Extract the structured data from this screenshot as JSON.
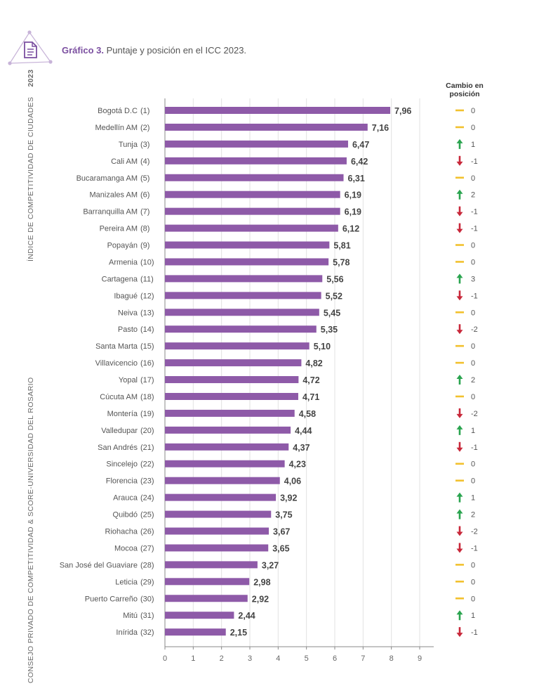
{
  "header": {
    "title_lead": "Gráfico 3.",
    "title_rest": " Puntaje y posición en el ICC 2023.",
    "side_label": "ÍNDICE DE COMPETITIVIDAD DE CIUDADES",
    "side_year": "2023",
    "side_label_bottom": "CONSEJO PRIVADO DE COMPETITIVIDAD & SCORE-UNIVERSIDAD DEL ROSARIO"
  },
  "change_column": {
    "title_line1": "Cambio en",
    "title_line2": "posición"
  },
  "colors": {
    "bar": "#8e5aa8",
    "accent": "#7b4fa0",
    "up": "#2aa44f",
    "down": "#c8283a",
    "same": "#f2c12e"
  },
  "chart_data": {
    "type": "bar",
    "orientation": "horizontal",
    "categories": [
      "Bogotá D.C",
      "Medellín AM",
      "Tunja",
      "Cali AM",
      "Bucaramanga AM",
      "Manizales AM",
      "Barranquilla AM",
      "Pereira AM",
      "Popayán",
      "Armenia",
      "Cartagena",
      "Ibagué",
      "Neiva",
      "Pasto",
      "Santa Marta",
      "Villavicencio",
      "Yopal",
      "Cúcuta AM",
      "Montería",
      "Valledupar",
      "San Andrés",
      "Sincelejo",
      "Florencia",
      "Arauca",
      "Quibdó",
      "Riohacha",
      "Mocoa",
      "San José del Guaviare",
      "Leticia",
      "Puerto Carreño",
      "Mitú",
      "Inírida"
    ],
    "ranks": [
      "(1)",
      "(2)",
      "(3)",
      "(4)",
      "(5)",
      "(6)",
      "(7)",
      "(8)",
      "(9)",
      "(10)",
      "(11)",
      "(12)",
      "(13)",
      "(14)",
      "(15)",
      "(16)",
      "(17)",
      "(18)",
      "(19)",
      "(20)",
      "(21)",
      "(22)",
      "(23)",
      "(24)",
      "(25)",
      "(26)",
      "(27)",
      "(28)",
      "(29)",
      "(30)",
      "(31)",
      "(32)"
    ],
    "values": [
      7.96,
      7.16,
      6.47,
      6.42,
      6.31,
      6.19,
      6.19,
      6.12,
      5.81,
      5.78,
      5.56,
      5.52,
      5.45,
      5.35,
      5.1,
      4.82,
      4.72,
      4.71,
      4.58,
      4.44,
      4.37,
      4.23,
      4.06,
      3.92,
      3.75,
      3.67,
      3.65,
      3.27,
      2.98,
      2.92,
      2.44,
      2.15
    ],
    "value_labels": [
      "7,96",
      "7,16",
      "6,47",
      "6,42",
      "6,31",
      "6,19",
      "6,19",
      "6,12",
      "5,81",
      "5,78",
      "5,56",
      "5,52",
      "5,45",
      "5,35",
      "5,10",
      "4,82",
      "4,72",
      "4,71",
      "4,58",
      "4,44",
      "4,37",
      "4,23",
      "4,06",
      "3,92",
      "3,75",
      "3,67",
      "3,65",
      "3,27",
      "2,98",
      "2,92",
      "2,44",
      "2,15"
    ],
    "position_change": [
      "0",
      "0",
      "1",
      "-1",
      "0",
      "2",
      "-1",
      "-1",
      "0",
      "0",
      "3",
      "-1",
      "0",
      "-2",
      "0",
      "0",
      "2",
      "0",
      "-2",
      "1",
      "-1",
      "0",
      "0",
      "1",
      "2",
      "-2",
      "-1",
      "0",
      "0",
      "0",
      "1",
      "-1"
    ],
    "change_direction": [
      "same",
      "same",
      "up",
      "down",
      "same",
      "up",
      "down",
      "down",
      "same",
      "same",
      "up",
      "down",
      "same",
      "down",
      "same",
      "same",
      "up",
      "same",
      "down",
      "up",
      "down",
      "same",
      "same",
      "up",
      "up",
      "down",
      "down",
      "same",
      "same",
      "same",
      "up",
      "down"
    ],
    "xlim": [
      0,
      9
    ],
    "xticks": [
      "0",
      "1",
      "2",
      "3",
      "4",
      "5",
      "6",
      "7",
      "8",
      "9"
    ],
    "grid": true
  }
}
